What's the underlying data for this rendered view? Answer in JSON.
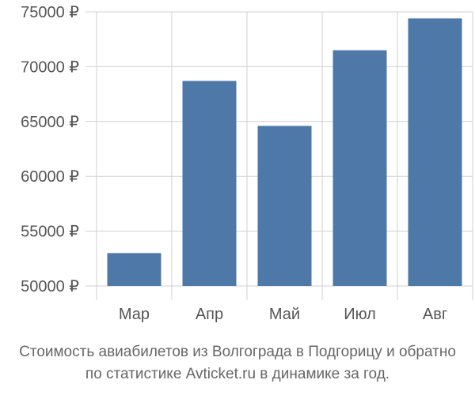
{
  "chart_data": {
    "type": "bar",
    "categories": [
      "Мар",
      "Апр",
      "Май",
      "Июл",
      "Авг"
    ],
    "values": [
      53000,
      68700,
      64600,
      71500,
      74400
    ],
    "ylim": [
      50000,
      75000
    ],
    "yticks": [
      50000,
      55000,
      60000,
      65000,
      70000,
      75000
    ],
    "currency_suffix": "₽",
    "grid": true,
    "bar_color": "#4d78a8",
    "grid_color": "#d0d0d0"
  },
  "caption": {
    "line1": "Стоимость авиабилетов из Волгограда в Подгорицу и обратно",
    "line2": "по статистике Avticket.ru в динамике за год."
  }
}
